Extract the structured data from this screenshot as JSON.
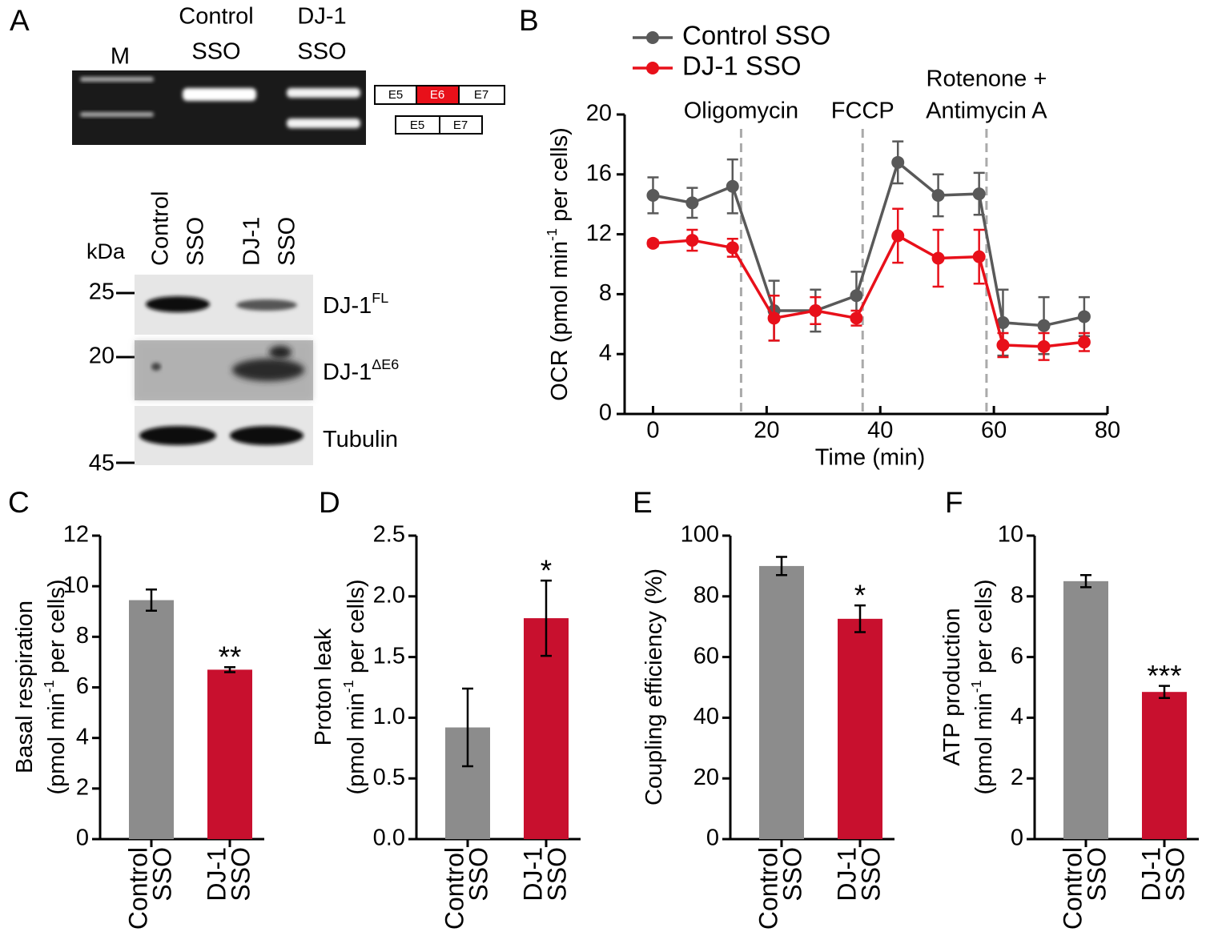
{
  "panel_a": {
    "label": "A",
    "gel": {
      "lanes": [
        [
          "M"
        ],
        [
          "Control",
          "SSO"
        ],
        [
          "DJ-1",
          "SSO"
        ]
      ],
      "exons_full": [
        "E5",
        "E6",
        "E7"
      ],
      "exons_skipped": [
        "E5",
        "E7"
      ]
    },
    "blot": {
      "lanes": [
        [
          "Control",
          "SSO"
        ],
        [
          "DJ-1",
          "SSO"
        ]
      ],
      "unit": "kDa",
      "markers": [
        25,
        20,
        45
      ],
      "bands": [
        {
          "text": "DJ-1",
          "sup": "FL"
        },
        {
          "text": "DJ-1",
          "sup": "ΔE6"
        },
        {
          "text": "Tubulin"
        }
      ]
    }
  },
  "chart_data": [
    {
      "type": "line",
      "panel": "B",
      "x": [
        0,
        6.9,
        14,
        21.3,
        28.6,
        35.8,
        43.1,
        50.2,
        57.4,
        61.6,
        68.8,
        75.9
      ],
      "series": [
        {
          "name": "Control SSO",
          "color": "#595959",
          "values": [
            14.6,
            14.1,
            15.2,
            6.9,
            6.9,
            7.9,
            16.8,
            14.6,
            14.7,
            6.1,
            5.9,
            6.5
          ],
          "errors": [
            1.2,
            1.0,
            1.8,
            2.0,
            1.4,
            1.6,
            1.4,
            1.4,
            1.4,
            2.2,
            1.9,
            1.3
          ]
        },
        {
          "name": "DJ-1 SSO",
          "color": "#e8101a",
          "values": [
            11.4,
            11.6,
            11.1,
            6.4,
            6.9,
            6.4,
            11.9,
            10.4,
            10.5,
            4.6,
            4.5,
            4.8
          ],
          "errors": [
            0.2,
            0.7,
            0.6,
            1.5,
            0.9,
            0.5,
            1.8,
            1.9,
            1.8,
            0.8,
            0.9,
            0.6
          ]
        }
      ],
      "xlim": [
        -5,
        80
      ],
      "xticks": [
        0,
        20,
        40,
        60,
        80
      ],
      "ylim": [
        0,
        20
      ],
      "yticks": [
        0,
        4,
        8,
        12,
        16,
        20
      ],
      "x_label": "Time (min)",
      "y_label": {
        "pre": "OCR (pmol min",
        "sup": "-1",
        "post": " per cells)"
      },
      "injections": [
        {
          "x": 15.5,
          "label": [
            "Oligomycin"
          ]
        },
        {
          "x": 36.9,
          "label": [
            "FCCP"
          ]
        },
        {
          "x": 58.7,
          "label": [
            "Rotenone +",
            "Antimycin A"
          ]
        }
      ]
    },
    {
      "type": "bar",
      "panel": "C",
      "categories": [
        [
          "Control",
          "SSO"
        ],
        [
          "DJ-1",
          "SSO"
        ]
      ],
      "values": [
        9.45,
        6.7
      ],
      "errors": [
        0.42,
        0.1
      ],
      "colors": [
        "#8c8c8c",
        "#c8102e"
      ],
      "significance": [
        null,
        "**"
      ],
      "ylim": [
        0,
        12
      ],
      "yticks": [
        0,
        2,
        4,
        6,
        8,
        10,
        12
      ],
      "y_label": [
        {
          "text": "Basal respiration"
        },
        {
          "pre": "(pmol min",
          "sup": "-1",
          "post": " per cells)"
        }
      ]
    },
    {
      "type": "bar",
      "panel": "D",
      "categories": [
        [
          "Control",
          "SSO"
        ],
        [
          "DJ-1",
          "SSO"
        ]
      ],
      "values": [
        0.92,
        1.82
      ],
      "errors": [
        0.32,
        0.31
      ],
      "colors": [
        "#8c8c8c",
        "#c8102e"
      ],
      "significance": [
        null,
        "*"
      ],
      "ylim": [
        0,
        2.5
      ],
      "yticks": [
        {
          "value": 0,
          "label": "0.0"
        },
        0.5,
        {
          "value": 1,
          "label": "1.0"
        },
        1.5,
        {
          "value": 2,
          "label": "2.0"
        },
        2.5
      ],
      "y_label": [
        {
          "text": "Proton leak"
        },
        {
          "pre": "(pmol min",
          "sup": "-1",
          "post": " per cells)"
        }
      ]
    },
    {
      "type": "bar",
      "panel": "E",
      "categories": [
        [
          "Control",
          "SSO"
        ],
        [
          "DJ-1",
          "SSO"
        ]
      ],
      "values": [
        90,
        72.6
      ],
      "errors": [
        3,
        4.4
      ],
      "colors": [
        "#8c8c8c",
        "#c8102e"
      ],
      "significance": [
        null,
        "*"
      ],
      "ylim": [
        0,
        100
      ],
      "yticks": [
        0,
        20,
        40,
        60,
        80,
        100
      ],
      "y_label": [
        {
          "text": "Coupling efficiency (%)"
        }
      ]
    },
    {
      "type": "bar",
      "panel": "F",
      "categories": [
        [
          "Control",
          "SSO"
        ],
        [
          "DJ-1",
          "SSO"
        ]
      ],
      "values": [
        8.5,
        4.85
      ],
      "errors": [
        0.2,
        0.2
      ],
      "colors": [
        "#8c8c8c",
        "#c8102e"
      ],
      "significance": [
        null,
        "***"
      ],
      "ylim": [
        0,
        10
      ],
      "yticks": [
        0,
        2,
        4,
        6,
        8,
        10
      ],
      "y_label": [
        {
          "text": "ATP production"
        },
        {
          "pre": "(pmol min",
          "sup": "-1",
          "post": " per cells)"
        }
      ]
    }
  ]
}
